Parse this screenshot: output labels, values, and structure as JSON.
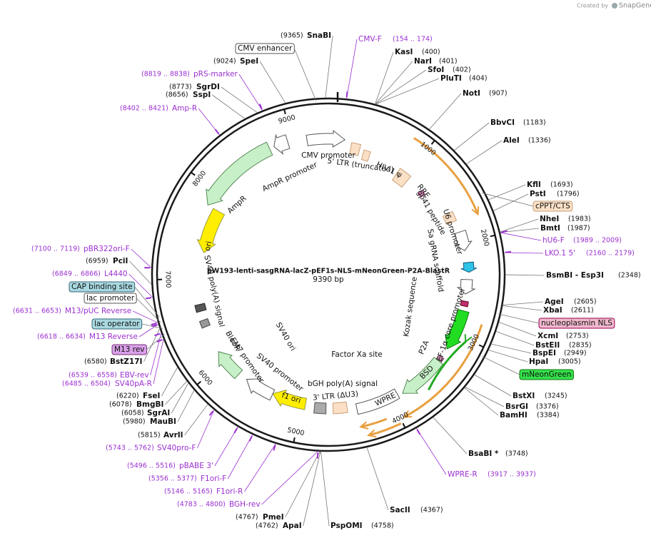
{
  "header": {
    "credit": "Created by",
    "brand": "SnapGene"
  },
  "map": {
    "name": "pW193-lenti-sasgRNA-lacZ-pEF1s-NLS-mNeonGreen-P2A-BlastR",
    "length": "9390 bp",
    "ticks": [
      1000,
      2000,
      3000,
      4000,
      5000,
      6000,
      7000,
      8000,
      9000
    ]
  },
  "enzymes": [
    {
      "name": "SnaBI",
      "site": "(9365)"
    },
    {
      "name": "KasI",
      "site": "(400)"
    },
    {
      "name": "NarI",
      "site": "(401)"
    },
    {
      "name": "SfoI",
      "site": "(402)"
    },
    {
      "name": "PluTI",
      "site": "(404)"
    },
    {
      "name": "NotI",
      "site": "(907)"
    },
    {
      "name": "BbvCI",
      "site": "(1183)"
    },
    {
      "name": "AleI",
      "site": "(1336)"
    },
    {
      "name": "KflI",
      "site": "(1693)"
    },
    {
      "name": "PstI",
      "site": "(1796)"
    },
    {
      "name": "NheI",
      "site": "(1983)"
    },
    {
      "name": "BmtI",
      "site": "(1987)"
    },
    {
      "name": "BsmBI - Esp3I",
      "site": "(2348)"
    },
    {
      "name": "AgeI",
      "site": "(2605)"
    },
    {
      "name": "XbaI",
      "site": "(2611)"
    },
    {
      "name": "XcmI",
      "site": "(2753)"
    },
    {
      "name": "BstEII",
      "site": "(2835)"
    },
    {
      "name": "BspEI",
      "site": "(2949)"
    },
    {
      "name": "HpaI",
      "site": "(3005)"
    },
    {
      "name": "BstXI",
      "site": "(3245)"
    },
    {
      "name": "BsrGI",
      "site": "(3376)"
    },
    {
      "name": "BamHI",
      "site": "(3384)"
    },
    {
      "name": "BsaBI *",
      "site": "(3748)"
    },
    {
      "name": "SacII",
      "site": "(4367)"
    },
    {
      "name": "PspOMI",
      "site": "(4758)"
    },
    {
      "name": "PmeI",
      "site": "(4767)"
    },
    {
      "name": "ApaI",
      "site": "(4762)"
    },
    {
      "name": "AvrII",
      "site": "(5815)"
    },
    {
      "name": "MauBI",
      "site": "(5980)"
    },
    {
      "name": "SgrAI",
      "site": "(6058)"
    },
    {
      "name": "BmgBI",
      "site": "(6078)"
    },
    {
      "name": "FseI",
      "site": "(6220)"
    },
    {
      "name": "BstZ17I",
      "site": "(6580)"
    },
    {
      "name": "PciI",
      "site": "(6959)"
    },
    {
      "name": "SspI",
      "site": "(8656)"
    },
    {
      "name": "SgrDI",
      "site": "(8773)"
    },
    {
      "name": "SpeI",
      "site": "(9024)"
    }
  ],
  "primers": [
    {
      "name": "CMV-F",
      "range": "(154 .. 174)"
    },
    {
      "name": "pRS-marker",
      "range": "(8819 .. 8838)"
    },
    {
      "name": "Amp-R",
      "range": "(8402 .. 8421)"
    },
    {
      "name": "hU6-F",
      "range": "(1989 .. 2009)"
    },
    {
      "name": "LKO.1 5'",
      "range": "(2160 .. 2179)"
    },
    {
      "name": "pBR322ori-F",
      "range": "(7100 .. 7119)"
    },
    {
      "name": "L4440",
      "range": "(6849 .. 6866)"
    },
    {
      "name": "M13/pUC Reverse",
      "range": "(6631 .. 6653)"
    },
    {
      "name": "M13 Reverse",
      "range": "(6618 .. 6634)"
    },
    {
      "name": "EBV-rev",
      "range": "(6539 .. 6558)"
    },
    {
      "name": "SV40pA-R",
      "range": "(6485 .. 6504)"
    },
    {
      "name": "SV40pro-F",
      "range": "(5743 .. 5762)"
    },
    {
      "name": "pBABE 3'",
      "range": "(5496 .. 5516)"
    },
    {
      "name": "F1ori-F",
      "range": "(5356 .. 5377)"
    },
    {
      "name": "F1ori-R",
      "range": "(5146 .. 5165)"
    },
    {
      "name": "BGH-rev",
      "range": "(4783 .. 4800)"
    },
    {
      "name": "WPRE-R",
      "range": "(3917 .. 3937)"
    }
  ],
  "boxed_features": [
    "CMV enhancer",
    "cPPT/CTS",
    "nucleoplasmin NLS",
    "mNeonGreen",
    "CAP binding site",
    "lac promoter",
    "lac operator",
    "M13 rev"
  ],
  "features": [
    "CMV promoter",
    "5' LTR (truncated)",
    "HIV-1 ψ",
    "RRE",
    "gp41 peptide",
    "U6 promoter",
    "AmpR promoter",
    "AmpR",
    "ori",
    "SV40 poly(A) signal",
    "EM7 promoter",
    "BleoR",
    "SV40 ori",
    "SV40 promoter",
    "f1 ori",
    "bGH poly(A) signal",
    "3' LTR (ΔU3)",
    "WPRE",
    "BSD",
    "P2A",
    "Factor Xa site",
    "Kozak sequence",
    "Sa gRNA scaffold",
    "EF-1α core promoter"
  ]
}
